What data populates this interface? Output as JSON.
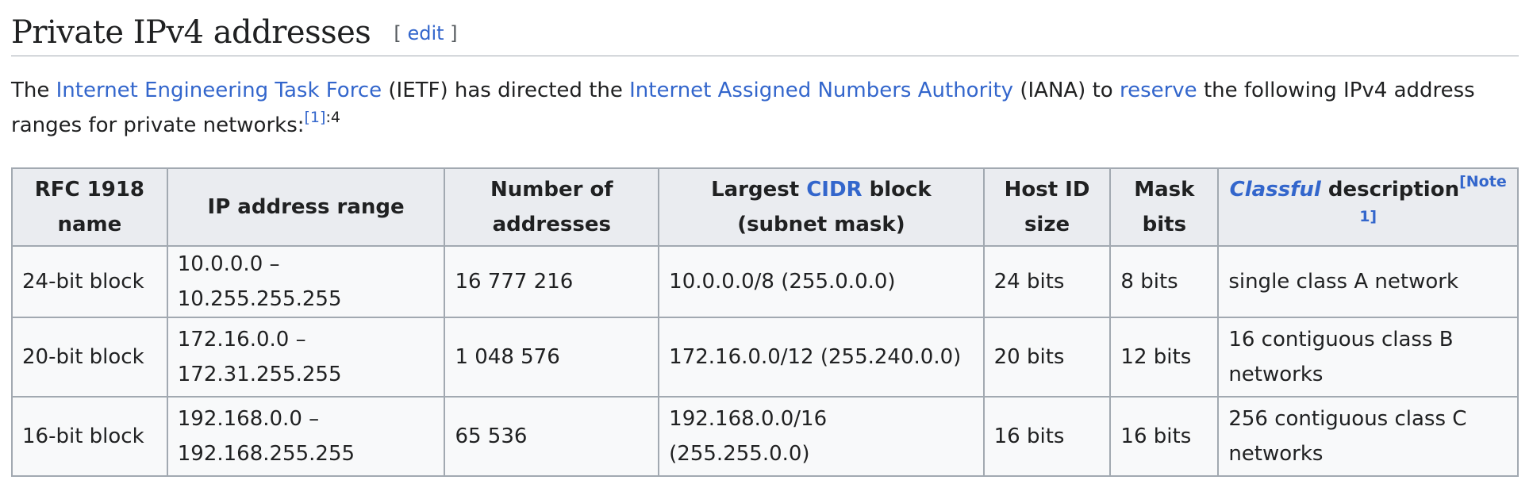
{
  "section": {
    "title": "Private IPv4 addresses",
    "edit_open": "[",
    "edit_label": "edit",
    "edit_close": "]"
  },
  "intro": {
    "t1": "The ",
    "link_ietf": "Internet Engineering Task Force",
    "t2": " (IETF) has directed the ",
    "link_iana": "Internet Assigned Numbers Authority",
    "t3": " (IANA) to ",
    "link_reserve": "reserve",
    "t4": " the following IPv4 address ranges for private networks:",
    "ref": "[1]",
    "page": ":4"
  },
  "table": {
    "headers": {
      "rfc_name": "RFC 1918 name",
      "ip_range": "IP address range",
      "num_addresses": "Number of addresses",
      "cidr_prefix": "Largest ",
      "cidr_link": "CIDR",
      "cidr_suffix": " block (subnet mask)",
      "host_id": "Host ID size",
      "mask_bits": "Mask bits",
      "classful_link": "Classful",
      "classful_suffix": " description",
      "note": "[Note 1]"
    },
    "rows": [
      {
        "name": "24-bit block",
        "range": "10.0.0.0 – 10.255.255.255",
        "count": "16 777 216",
        "cidr": "10.0.0.0/8 (255.0.0.0)",
        "host": "24 bits",
        "mask": "8 bits",
        "desc": "single class A network"
      },
      {
        "name": "20-bit block",
        "range": "172.16.0.0 – 172.31.255.255",
        "count": "1 048 576",
        "cidr": "172.16.0.0/12 (255.240.0.0)",
        "host": "20 bits",
        "mask": "12 bits",
        "desc": "16 contiguous class B networks"
      },
      {
        "name": "16-bit block",
        "range": "192.168.0.0 – 192.168.255.255",
        "count": "65 536",
        "cidr": "192.168.0.0/16 (255.255.0.0)",
        "host": "16 bits",
        "mask": "16 bits",
        "desc": "256 contiguous class C networks"
      }
    ]
  }
}
